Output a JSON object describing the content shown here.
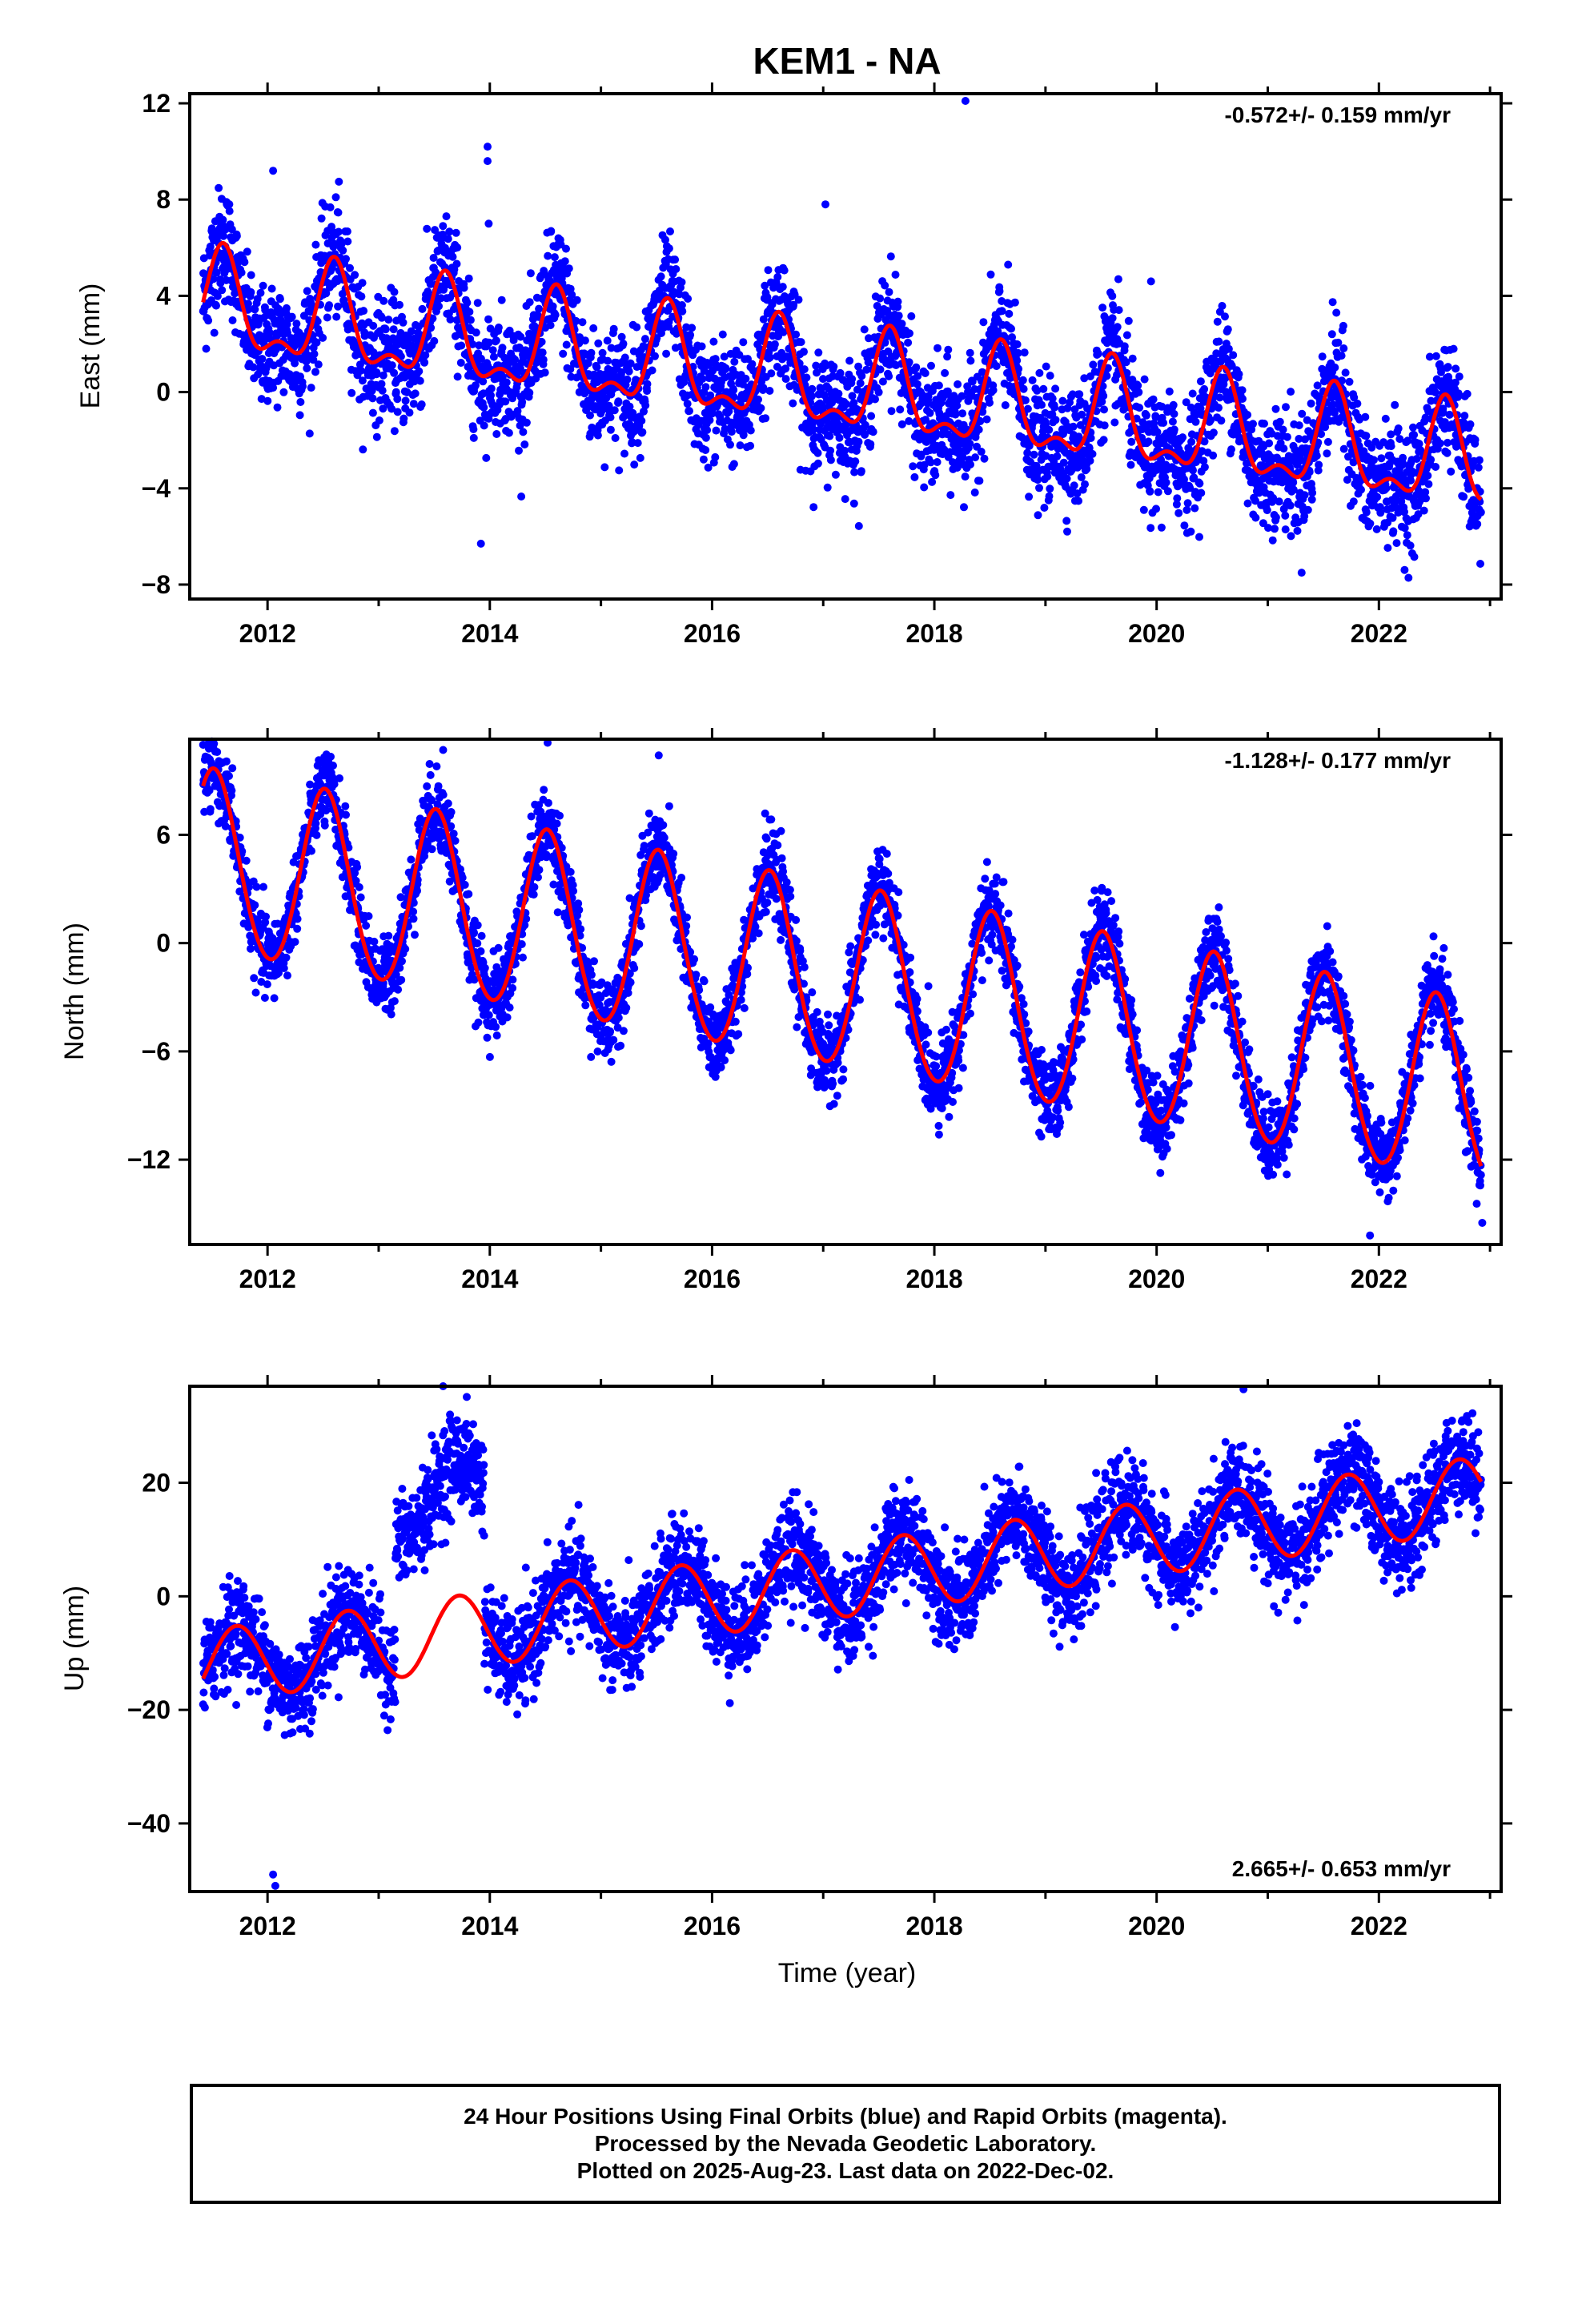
{
  "title": "KEM1 - NA",
  "xlabel": "Time (year)",
  "footer": {
    "line1": "24 Hour Positions Using Final Orbits (blue) and Rapid Orbits (magenta).",
    "line2": "Processed by the Nevada Geodetic Laboratory.",
    "line3": "Plotted on 2025-Aug-23. Last data on 2022-Dec-02."
  },
  "colors": {
    "points": "#0000ff",
    "model": "#ff0000",
    "axes": "#000000"
  },
  "chart_data": [
    {
      "type": "scatter",
      "component": "east",
      "ylabel": "East (mm)",
      "rate_label": "-0.572+/- 0.159 mm/yr",
      "xlim": [
        2011.3,
        2023.1
      ],
      "ylim": [
        -8.6,
        12.4
      ],
      "xticks": [
        2012,
        2014,
        2016,
        2018,
        2020,
        2022
      ],
      "yticks": [
        -8,
        -4,
        0,
        4,
        8,
        12
      ],
      "series": [
        {
          "kind": "daily positions",
          "model": {
            "offset": 3.5,
            "rate": -0.572,
            "annual": 1.9,
            "phase": 0.6,
            "semi": 0.9,
            "semi_phase": 0.1
          },
          "x_range": [
            2011.42,
            2022.92
          ],
          "spacing": 0.0027397,
          "noise": 1.2,
          "outliers": [
            [
              2012.05,
              9.2
            ],
            [
              2013.98,
              10.2
            ],
            [
              2013.98,
              9.6
            ],
            [
              2013.99,
              7.0
            ],
            [
              2017.02,
              7.8
            ],
            [
              2018.28,
              12.1
            ],
            [
              2013.92,
              -6.3
            ],
            [
              2019.95,
              4.6
            ]
          ]
        }
      ]
    },
    {
      "type": "scatter",
      "component": "north",
      "ylabel": "North (mm)",
      "rate_label": "-1.128+/- 0.177 mm/yr",
      "xlim": [
        2011.3,
        2023.1
      ],
      "ylim": [
        -16.7,
        11.3
      ],
      "xticks": [
        2012,
        2014,
        2016,
        2018,
        2020,
        2022
      ],
      "yticks": [
        -12,
        -6,
        0,
        6
      ],
      "series": [
        {
          "kind": "daily positions",
          "model": {
            "offset": 4.5,
            "rate": -1.128,
            "annual": 5.0,
            "phase": 0.52,
            "semi": 0.3,
            "semi_phase": 0.0
          },
          "x_range": [
            2011.42,
            2022.92
          ],
          "spacing": 0.0027397,
          "noise": 1.1,
          "outliers": [
            [
              2014.52,
              11.1
            ],
            [
              2015.52,
              10.4
            ],
            [
              2013.58,
              10.7
            ],
            [
              2021.92,
              -16.2
            ],
            [
              2022.93,
              -15.5
            ]
          ]
        }
      ]
    },
    {
      "type": "scatter",
      "component": "up",
      "ylabel": "Up (mm)",
      "rate_label": "2.665+/- 0.653 mm/yr",
      "xlim": [
        2011.3,
        2023.1
      ],
      "ylim": [
        -52,
        37
      ],
      "xticks": [
        2012,
        2014,
        2016,
        2018,
        2020,
        2022
      ],
      "yticks": [
        -40,
        -20,
        0,
        20
      ],
      "series": [
        {
          "kind": "daily positions",
          "model": {
            "offset": -12.5,
            "rate": 2.665,
            "annual": 6.5,
            "phase": 0.72,
            "semi": 0.0,
            "semi_phase": 0.0
          },
          "x_range": [
            2011.42,
            2022.92
          ],
          "spacing": 0.0027397,
          "noise": 4.2,
          "offset_segment": {
            "x_range": [
              2013.15,
              2013.95
            ],
            "shift": 24
          },
          "outliers": [
            [
              2013.58,
              37
            ],
            [
              2012.05,
              -49
            ],
            [
              2012.07,
              -51
            ],
            [
              2022.75,
              31
            ],
            [
              2021.72,
              30
            ]
          ]
        }
      ]
    }
  ]
}
